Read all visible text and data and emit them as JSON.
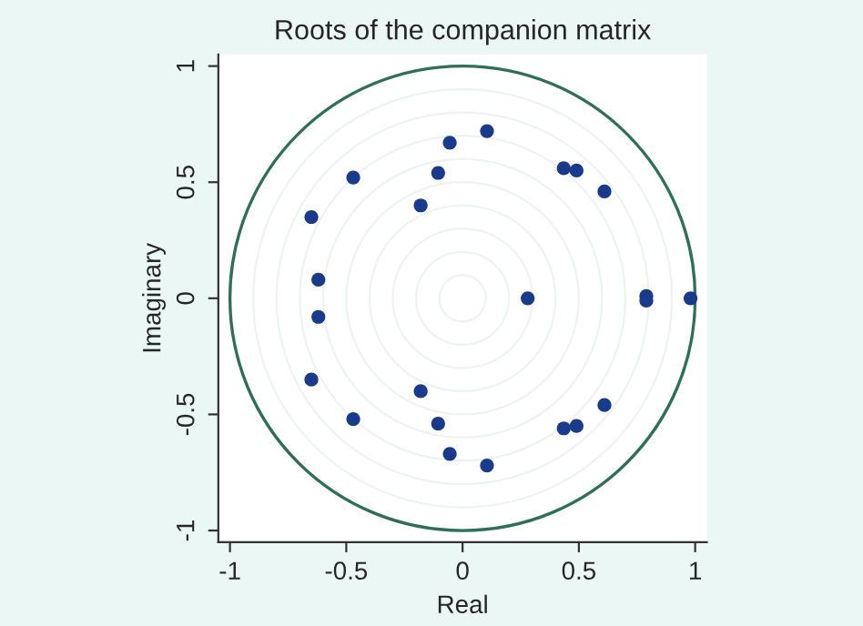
{
  "chart_data": {
    "type": "scatter",
    "title": "Roots of the companion matrix",
    "xlabel": "Real",
    "ylabel": "Imaginary",
    "xlim": [
      -1.05,
      1.05
    ],
    "ylim": [
      -1.05,
      1.05
    ],
    "xticks": [
      -1,
      -0.5,
      0,
      0.5,
      1
    ],
    "yticks": [
      -1,
      -0.5,
      0,
      0.5,
      1
    ],
    "grid": false,
    "legend": false,
    "marker": "circle",
    "series": [
      {
        "color": "#1a3a8c",
        "x": [
          0.105,
          0.105,
          -0.055,
          -0.055,
          -0.105,
          -0.105,
          -0.47,
          -0.47,
          -0.65,
          -0.65,
          -0.18,
          -0.18,
          0.435,
          0.435,
          0.49,
          0.49,
          0.61,
          0.61,
          -0.62,
          -0.62,
          0.28,
          0.79,
          0.79,
          0.98
        ],
        "values": [
          0.72,
          -0.72,
          0.67,
          -0.67,
          0.54,
          -0.54,
          0.52,
          -0.52,
          0.35,
          -0.35,
          0.4,
          -0.4,
          0.56,
          -0.56,
          0.55,
          -0.55,
          0.46,
          -0.46,
          0.08,
          -0.08,
          0,
          0.01,
          -0.01,
          0
        ]
      }
    ]
  }
}
